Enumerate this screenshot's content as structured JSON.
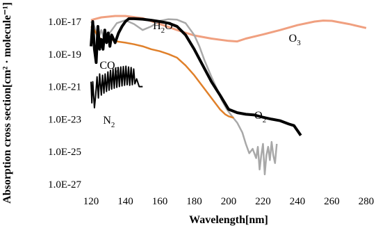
{
  "chart_data": {
    "type": "line",
    "title": "",
    "xlabel": "Wavelength[nm]",
    "ylabel": "Absorption cross section[cm² · molecule⁻¹]",
    "xlim": [
      120,
      280
    ],
    "ylim_log10": [
      -27,
      -17
    ],
    "y_scale": "log",
    "grid": false,
    "x_ticks": [
      "120",
      "140",
      "160",
      "180",
      "200",
      "220",
      "240",
      "260",
      "280"
    ],
    "y_ticks": [
      "1.0E-17",
      "1.0E-19",
      "1.0E-21",
      "1.0E-23",
      "1.0E-25",
      "1.0E-27"
    ],
    "series": [
      {
        "name": "O3",
        "label_main": "O",
        "label_sub": "3",
        "color": "#f0a080",
        "x": [
          120,
          122,
          126,
          130,
          134,
          140,
          150,
          160,
          170,
          180,
          190,
          200,
          205,
          210,
          220,
          230,
          240,
          250,
          255,
          260,
          270,
          280
        ],
        "y": [
          1.2e-17,
          1.4e-17,
          1.8e-17,
          2e-17,
          2.2e-17,
          2.2e-17,
          1.6e-17,
          7e-18,
          3e-18,
          1.4e-18,
          9e-19,
          6.5e-19,
          6e-19,
          9e-19,
          1.6e-18,
          3e-18,
          6e-18,
          1e-17,
          1.15e-17,
          1.1e-17,
          7e-18,
          4e-18
        ]
      },
      {
        "name": "H2O",
        "label_main": "H",
        "label_sub": "2",
        "label_tail": "O",
        "color": "#a8a8a8",
        "x": [
          120,
          122,
          124,
          126,
          128,
          130,
          135,
          140,
          145,
          150,
          155,
          160,
          165,
          170,
          175,
          180,
          183,
          186,
          190,
          193,
          196,
          199,
          202,
          205,
          208,
          210,
          212,
          214,
          216,
          217,
          218,
          219,
          220,
          221,
          222,
          223,
          224,
          225,
          226,
          227,
          228
        ],
        "y": [
          1e-17,
          5e-18,
          8e-19,
          3e-18,
          6e-19,
          1.5e-18,
          8e-18,
          1.2e-17,
          7e-18,
          3e-18,
          5e-18,
          1.1e-17,
          1.4e-17,
          1.3e-17,
          8e-18,
          1.5e-18,
          3e-19,
          4e-20,
          4e-21,
          8e-22,
          1.5e-22,
          4e-23,
          1.5e-23,
          6e-24,
          1.5e-24,
          3e-25,
          8e-26,
          1.5e-25,
          4e-26,
          2e-25,
          8e-27,
          6e-26,
          3e-25,
          4e-27,
          6e-26,
          2e-25,
          3e-26,
          4e-25,
          6e-26,
          2e-26,
          3e-25
        ]
      },
      {
        "name": "CO2",
        "label_main": "CO",
        "label_sub": "2",
        "color": "#e0802a",
        "x": [
          120,
          122,
          124,
          126,
          128,
          130,
          132,
          135,
          140,
          145,
          150,
          155,
          160,
          165,
          170,
          175,
          180,
          185,
          190,
          195,
          198,
          200,
          203
        ],
        "y": [
          5e-18,
          3e-18,
          1.2e-18,
          8e-19,
          6e-19,
          6e-19,
          8e-19,
          6e-19,
          5e-19,
          4e-19,
          3e-19,
          2e-19,
          1.5e-19,
          1e-19,
          6e-20,
          2e-20,
          5e-21,
          1e-21,
          2e-22,
          4e-23,
          2e-23,
          1.5e-23,
          1.2e-23
        ]
      },
      {
        "name": "O2",
        "label_main": "O",
        "label_sub": "2",
        "color": "#000000",
        "x": [
          120,
          121,
          122,
          123,
          124,
          125,
          126,
          127,
          128,
          129,
          130,
          131,
          132,
          134,
          136,
          138,
          140,
          142,
          145,
          150,
          155,
          160,
          165,
          170,
          175,
          180,
          185,
          190,
          195,
          200,
          205,
          210,
          215,
          220,
          225,
          230,
          235,
          238,
          240,
          242
        ],
        "y": [
          3e-19,
          1e-17,
          2e-19,
          3e-20,
          5e-18,
          2e-19,
          8e-19,
          2e-19,
          3e-18,
          5e-19,
          2e-18,
          3e-19,
          1.5e-18,
          5e-19,
          2e-18,
          5e-18,
          1e-17,
          1.5e-17,
          1.5e-17,
          1.4e-17,
          1.2e-17,
          1e-17,
          8e-18,
          5e-18,
          1.5e-18,
          2e-19,
          2e-20,
          2e-21,
          3e-22,
          4e-23,
          2.5e-23,
          2e-23,
          1.8e-23,
          1.3e-23,
          1e-23,
          8e-24,
          5e-24,
          4e-24,
          2e-24,
          1e-24
        ]
      },
      {
        "name": "N2",
        "label_main": "N",
        "label_sub": "2",
        "color": "#000000",
        "x": [
          120,
          120.5,
          121,
          122,
          122.7,
          123.5,
          124.3,
          125,
          126,
          126.7,
          127.5,
          128.2,
          129,
          129.8,
          130.5,
          131.3,
          132,
          132.8,
          133.5,
          134.3,
          135,
          135.8,
          136.5,
          137.3,
          138,
          138.8,
          139.5,
          140.3,
          141,
          141.8,
          142.5,
          143.3,
          144,
          144.8,
          145.5,
          146.5,
          148,
          150
        ],
        "y": [
          2e-21,
          1e-22,
          2e-21,
          5e-23,
          3e-22,
          4e-21,
          2e-22,
          6e-21,
          3e-22,
          5e-21,
          4e-22,
          6e-21,
          5e-22,
          8e-21,
          6e-22,
          1e-20,
          7e-22,
          1.2e-20,
          8e-22,
          1.4e-20,
          9e-22,
          1.5e-20,
          1e-21,
          1.6e-20,
          1.1e-21,
          1.7e-20,
          1.2e-21,
          1.8e-20,
          1.3e-21,
          1.6e-20,
          1.2e-21,
          1.5e-20,
          1.3e-21,
          1.2e-20,
          1.5e-21,
          3e-21,
          1e-21,
          1e-21
        ]
      }
    ]
  }
}
